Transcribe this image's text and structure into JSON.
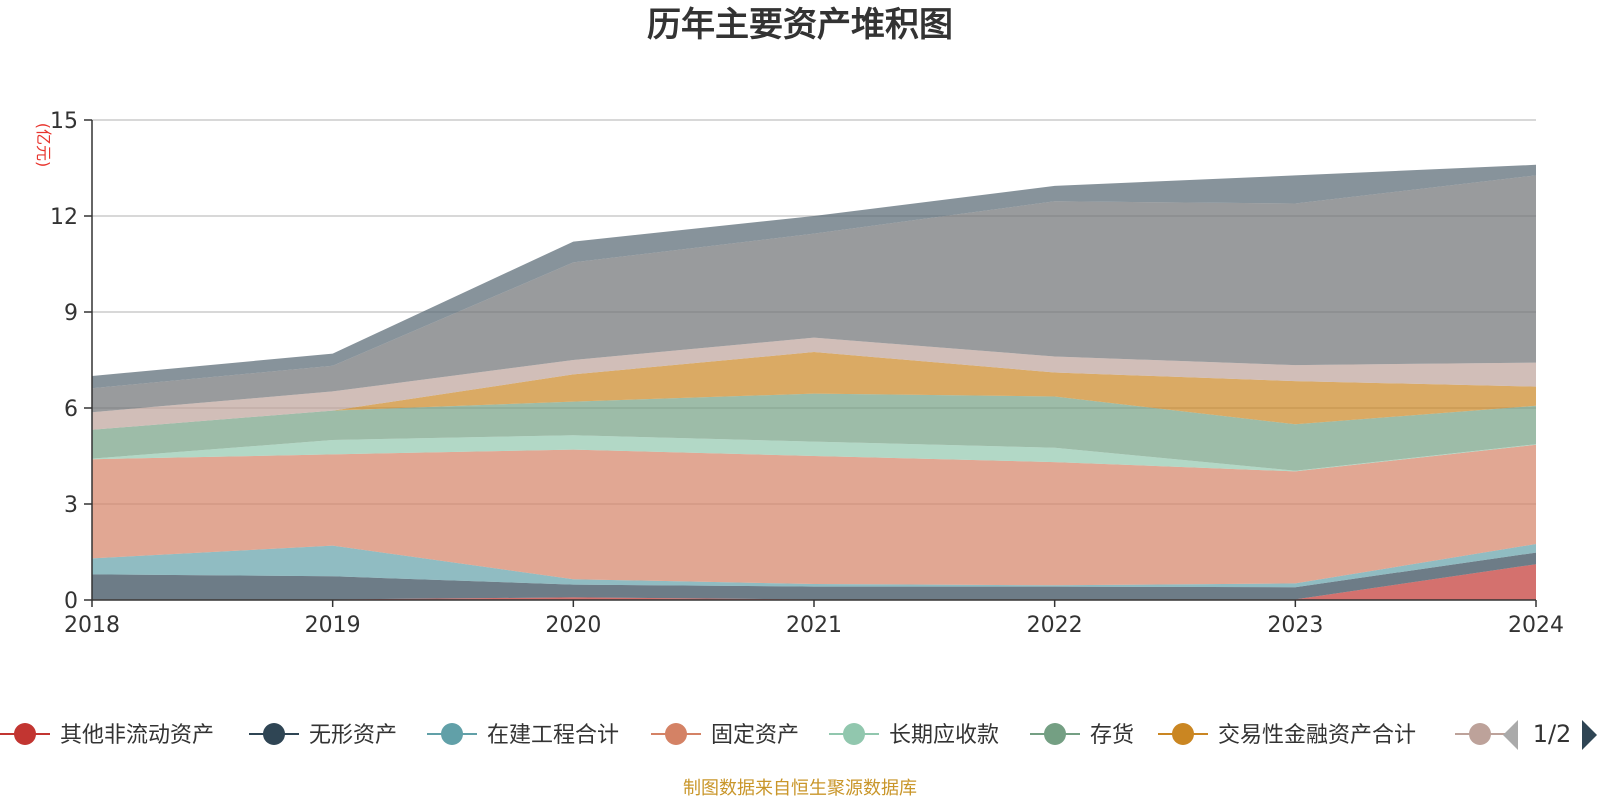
{
  "chart_data": {
    "type": "area",
    "stacked": true,
    "title": "历年主要资产堆积图",
    "ylabel": "(亿元)",
    "ylim": [
      0,
      15
    ],
    "yticks": [
      "0",
      "3",
      "6",
      "9",
      "12",
      "15"
    ],
    "x": [
      "2018",
      "2019",
      "2020",
      "2021",
      "2022",
      "2023",
      "2024"
    ],
    "grid": true,
    "legend_position": "bottom",
    "legend_page": "1/2",
    "source": "制图数据来自恒生聚源数据库",
    "series": [
      {
        "name": "其他非流动资产",
        "color": "#c23531",
        "values": [
          0.02,
          0.02,
          0.08,
          0.02,
          0.02,
          0.02,
          1.12
        ]
      },
      {
        "name": "无形资产",
        "color": "#2f4554",
        "values": [
          0.78,
          0.72,
          0.4,
          0.4,
          0.4,
          0.38,
          0.36
        ]
      },
      {
        "name": "在建工程合计",
        "color": "#61a0a8",
        "values": [
          0.5,
          0.96,
          0.17,
          0.08,
          0.04,
          0.12,
          0.27
        ]
      },
      {
        "name": "固定资产",
        "color": "#d48265",
        "values": [
          3.1,
          2.85,
          4.05,
          4.0,
          3.85,
          3.5,
          3.1
        ]
      },
      {
        "name": "长期应收款",
        "color": "#91c7ae",
        "values": [
          0.02,
          0.45,
          0.45,
          0.45,
          0.45,
          0.02,
          0.02
        ]
      },
      {
        "name": "存货",
        "color": "#749f83",
        "values": [
          0.9,
          0.92,
          1.05,
          1.5,
          1.6,
          1.45,
          1.2
        ]
      },
      {
        "name": "交易性金融资产合计",
        "color": "#ca8622",
        "values": [
          0.0,
          0.0,
          0.85,
          1.3,
          0.75,
          1.35,
          0.6
        ]
      },
      {
        "name": "",
        "color": "#bda29a",
        "values": [
          0.55,
          0.6,
          0.45,
          0.45,
          0.5,
          0.5,
          0.75
        ]
      },
      {
        "name": "",
        "color": "#6e7074",
        "values": [
          0.75,
          0.8,
          3.05,
          3.25,
          4.85,
          5.05,
          5.85
        ]
      },
      {
        "name": "",
        "color": "#546570",
        "values": [
          0.38,
          0.38,
          0.65,
          0.55,
          0.48,
          0.88,
          0.33
        ]
      }
    ]
  }
}
